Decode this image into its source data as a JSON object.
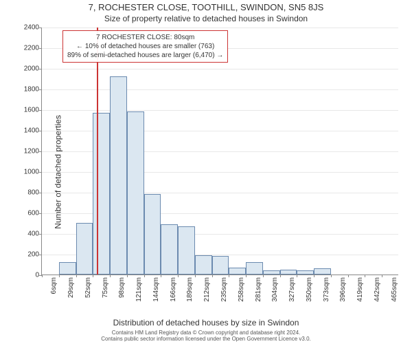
{
  "title_main": "7, ROCHESTER CLOSE, TOOTHILL, SWINDON, SN5 8JS",
  "title_sub": "Size of property relative to detached houses in Swindon",
  "ylabel": "Number of detached properties",
  "xlabel": "Distribution of detached houses by size in Swindon",
  "footer_line1": "Contains HM Land Registry data © Crown copyright and database right 2024.",
  "footer_line2": "Contains public sector information licensed under the Open Government Licence v3.0.",
  "info_box": {
    "line1": "7 ROCHESTER CLOSE: 80sqm",
    "line2": "← 10% of detached houses are smaller (763)",
    "line3": "89% of semi-detached houses are larger (6,470) →"
  },
  "chart": {
    "type": "histogram",
    "bar_fill": "#dbe7f1",
    "bar_border": "#6b8aaf",
    "grid_color": "#e8e8e8",
    "marker_color": "#cc3333",
    "marker_x_value": 80,
    "bin_width_sqm": 23,
    "bin_start_sqm": 6,
    "x_categories": [
      "6sqm",
      "29sqm",
      "52sqm",
      "75sqm",
      "98sqm",
      "121sqm",
      "144sqm",
      "166sqm",
      "189sqm",
      "212sqm",
      "235sqm",
      "258sqm",
      "281sqm",
      "304sqm",
      "327sqm",
      "350sqm",
      "373sqm",
      "396sqm",
      "419sqm",
      "442sqm",
      "465sqm"
    ],
    "y_max": 2400,
    "y_min": 0,
    "y_tick_step": 200,
    "values": [
      0,
      120,
      500,
      1570,
      1920,
      1580,
      780,
      490,
      470,
      190,
      180,
      70,
      120,
      40,
      50,
      40,
      60,
      0,
      0,
      0,
      0
    ],
    "title_fontsize": 13,
    "sub_fontsize": 12,
    "label_fontsize": 12,
    "tick_fontsize": 10,
    "info_fontsize": 10,
    "footer_fontsize": 8
  }
}
